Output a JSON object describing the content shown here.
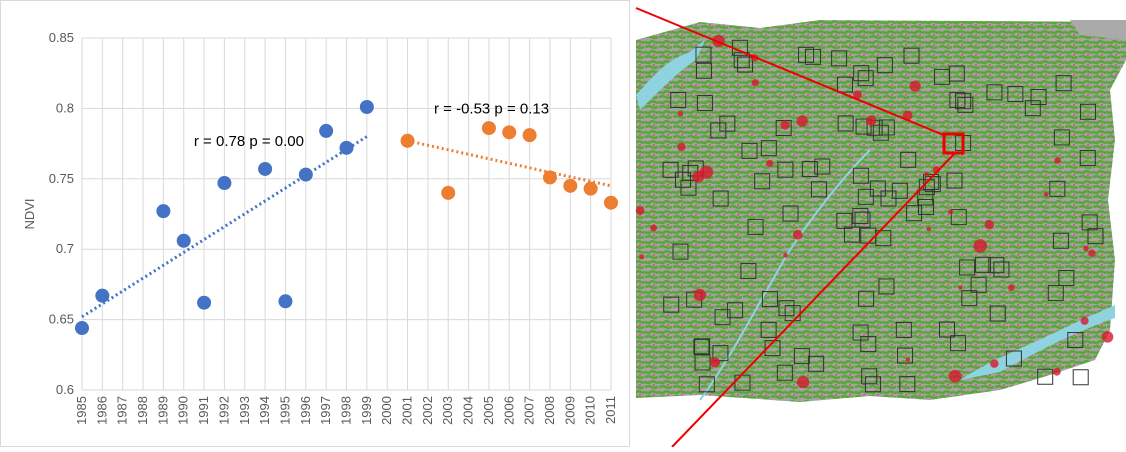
{
  "chart_data": {
    "type": "scatter",
    "y_label": "NDVI",
    "xlim": [
      1985,
      2011
    ],
    "xticks": [
      1985,
      1986,
      1987,
      1988,
      1989,
      1990,
      1991,
      1992,
      1993,
      1994,
      1995,
      1996,
      1997,
      1998,
      1999,
      2000,
      2001,
      2002,
      2003,
      2004,
      2005,
      2006,
      2007,
      2008,
      2009,
      2010,
      2011
    ],
    "ylim": [
      0.6,
      0.85
    ],
    "yticks": [
      0.6,
      0.65,
      0.7,
      0.75,
      0.8,
      0.85
    ],
    "grid": true,
    "series": [
      {
        "color": "#4472c4",
        "x": [
          1985,
          1986,
          1989,
          1990,
          1991,
          1992,
          1994,
          1995,
          1996,
          1997,
          1998,
          1999
        ],
        "values": [
          0.644,
          0.667,
          0.727,
          0.706,
          0.662,
          0.747,
          0.757,
          0.663,
          0.753,
          0.784,
          0.772,
          0.801
        ]
      },
      {
        "color": "#ed7d31",
        "x": [
          2001,
          2003,
          2005,
          2006,
          2007,
          2008,
          2009,
          2010,
          2011
        ],
        "values": [
          0.777,
          0.74,
          0.786,
          0.783,
          0.781,
          0.751,
          0.745,
          0.743,
          0.733
        ]
      }
    ],
    "trendlines": [
      {
        "color": "#4472c4",
        "x": [
          1985,
          1999
        ],
        "values": [
          0.652,
          0.78
        ]
      },
      {
        "color": "#ed7d31",
        "x": [
          2001,
          2011
        ],
        "values": [
          0.777,
          0.745
        ]
      }
    ],
    "annotations": [
      {
        "text": "r = 0.78 p = 0.00",
        "x": 1990.5,
        "y": 0.777
      },
      {
        "text": "r = -0.53 p = 0.13",
        "x": 2002.3,
        "y": 0.8
      }
    ]
  }
}
